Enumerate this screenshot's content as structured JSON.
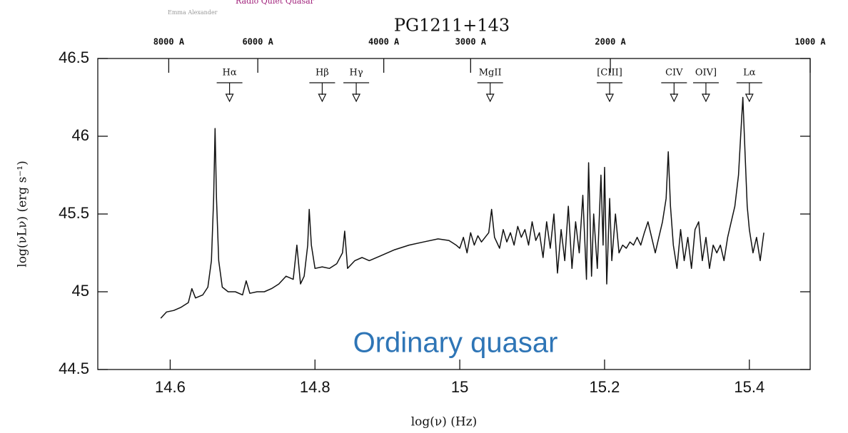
{
  "header": {
    "author": "Emma Alexander",
    "topic": "Radio Quiet Quasar"
  },
  "chart_data": {
    "type": "line",
    "title": "PG1211+143",
    "xlabel": "log(ν) (Hz)",
    "ylabel": "log(νLν) (erg s⁻¹)",
    "annotation": "Ordinary quasar",
    "xlim": [
      14.5,
      15.484
    ],
    "ylim": [
      44.5,
      46.5
    ],
    "xticks": [
      14.6,
      14.8,
      15,
      15.2,
      15.4
    ],
    "yticks": [
      44.5,
      45,
      45.5,
      46,
      46.5
    ],
    "x2ticks": [
      {
        "value": 14.598,
        "label": "8000 A"
      },
      {
        "value": 14.721,
        "label": "6000 A"
      },
      {
        "value": 14.895,
        "label": "4000 A"
      },
      {
        "value": 15.015,
        "label": "3000 A"
      },
      {
        "value": 15.208,
        "label": "2000 A"
      },
      {
        "value": 15.484,
        "label": "1000 A"
      }
    ],
    "lines": [
      {
        "label": "Hα",
        "x": 14.682
      },
      {
        "label": "Hβ",
        "x": 14.81
      },
      {
        "label": "Hγ",
        "x": 14.857
      },
      {
        "label": "MgII",
        "x": 15.042
      },
      {
        "label": "[CIII]",
        "x": 15.207
      },
      {
        "label": "CIV",
        "x": 15.296
      },
      {
        "label": "OIV]",
        "x": 15.34
      },
      {
        "label": "Lα",
        "x": 15.4
      }
    ],
    "x": [
      14.587,
      14.595,
      14.605,
      14.615,
      14.625,
      14.63,
      14.635,
      14.645,
      14.652,
      14.657,
      14.66,
      14.662,
      14.664,
      14.667,
      14.672,
      14.68,
      14.69,
      14.7,
      14.705,
      14.71,
      14.72,
      14.73,
      14.74,
      14.75,
      14.76,
      14.77,
      14.775,
      14.78,
      14.785,
      14.79,
      14.792,
      14.795,
      14.8,
      14.81,
      14.82,
      14.83,
      14.838,
      14.841,
      14.845,
      14.855,
      14.865,
      14.875,
      14.89,
      14.91,
      14.93,
      14.95,
      14.97,
      14.985,
      14.995,
      15.0,
      15.005,
      15.01,
      15.015,
      15.02,
      15.025,
      15.03,
      15.04,
      15.044,
      15.048,
      15.055,
      15.06,
      15.065,
      15.07,
      15.075,
      15.08,
      15.085,
      15.09,
      15.095,
      15.1,
      15.105,
      15.11,
      15.115,
      15.12,
      15.125,
      15.13,
      15.135,
      15.14,
      15.145,
      15.15,
      15.155,
      15.16,
      15.165,
      15.17,
      15.175,
      15.178,
      15.182,
      15.185,
      15.19,
      15.195,
      15.198,
      15.2,
      15.203,
      15.207,
      15.21,
      15.215,
      15.22,
      15.225,
      15.23,
      15.235,
      15.24,
      15.245,
      15.25,
      15.255,
      15.26,
      15.265,
      15.27,
      15.275,
      15.28,
      15.285,
      15.288,
      15.291,
      15.295,
      15.3,
      15.305,
      15.31,
      15.315,
      15.32,
      15.325,
      15.33,
      15.335,
      15.34,
      15.345,
      15.35,
      15.355,
      15.36,
      15.365,
      15.37,
      15.375,
      15.38,
      15.385,
      15.388,
      15.391,
      15.394,
      15.397,
      15.4,
      15.405,
      15.41,
      15.415,
      15.42
    ],
    "series": [
      {
        "color": "#111111",
        "values": [
          44.83,
          44.87,
          44.88,
          44.9,
          44.93,
          45.02,
          44.96,
          44.98,
          45.03,
          45.2,
          45.6,
          46.05,
          45.6,
          45.2,
          45.03,
          45.0,
          45.0,
          44.98,
          45.07,
          44.99,
          45.0,
          45.0,
          45.02,
          45.05,
          45.1,
          45.08,
          45.3,
          45.05,
          45.1,
          45.3,
          45.53,
          45.3,
          45.15,
          45.16,
          45.15,
          45.18,
          45.25,
          45.39,
          45.15,
          45.2,
          45.22,
          45.2,
          45.23,
          45.27,
          45.3,
          45.32,
          45.34,
          45.33,
          45.3,
          45.28,
          45.35,
          45.25,
          45.38,
          45.3,
          45.36,
          45.32,
          45.38,
          45.53,
          45.35,
          45.28,
          45.4,
          45.32,
          45.38,
          45.3,
          45.42,
          45.35,
          45.4,
          45.3,
          45.45,
          45.33,
          45.38,
          45.22,
          45.45,
          45.28,
          45.5,
          45.12,
          45.4,
          45.2,
          45.55,
          45.15,
          45.45,
          45.25,
          45.62,
          45.08,
          45.83,
          45.1,
          45.5,
          45.15,
          45.75,
          45.3,
          45.8,
          45.05,
          45.6,
          45.2,
          45.5,
          45.25,
          45.3,
          45.28,
          45.32,
          45.3,
          45.35,
          45.3,
          45.38,
          45.45,
          45.35,
          45.25,
          45.35,
          45.45,
          45.6,
          45.9,
          45.55,
          45.3,
          45.15,
          45.4,
          45.2,
          45.35,
          45.15,
          45.4,
          45.45,
          45.2,
          45.35,
          45.15,
          45.3,
          45.25,
          45.3,
          45.2,
          45.35,
          45.45,
          45.55,
          45.75,
          46.0,
          46.25,
          45.9,
          45.55,
          45.4,
          45.25,
          45.35,
          45.2,
          45.38
        ]
      }
    ]
  }
}
